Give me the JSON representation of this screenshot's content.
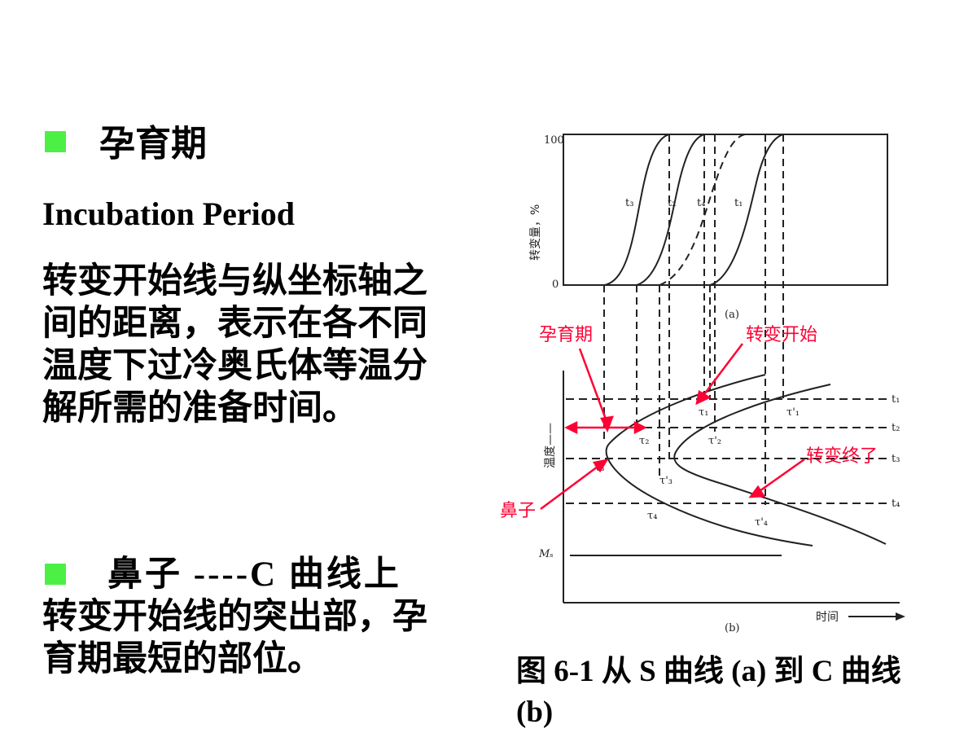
{
  "left": {
    "heading1": "孕育期",
    "english": "Incubation Period",
    "paragraph1": "转变开始线与纵坐标轴之间的距离，表示在各不同温度下过冷奥氏体等温分解所需的准备时间。",
    "paragraph2_lead": "鼻子 ----C  曲线上",
    "paragraph2_rest": "转变开始线的突出部，孕育期最短的部位。"
  },
  "figure": {
    "top_chart": {
      "ylabel": "转变量，%",
      "y_max_tick": "100",
      "y_min_tick": "0",
      "curve_labels": [
        "t₃",
        "t₂",
        "t₄",
        "t₁"
      ],
      "panel_label": "(a)"
    },
    "bottom_chart": {
      "ylabel": "温度——",
      "xlabel": "时间",
      "ms_label": "Mₛ",
      "panel_label": "(b)",
      "temp_labels": [
        "t₁",
        "t₂",
        "t₃",
        "t₄"
      ],
      "tau_start": [
        "τ₁",
        "τ₂",
        "τ₃",
        "τ₄"
      ],
      "tau_end": [
        "τ'₁",
        "τ'₂",
        "τ'₃",
        "τ'₄"
      ]
    },
    "annotations": {
      "incubation": "孕育期",
      "start": "转变开始",
      "end": "转变终了",
      "nose": "鼻子"
    },
    "colors": {
      "annotation": "#ff0033",
      "bullet": "#4cf045"
    }
  },
  "caption": "图 6-1   从 S 曲线 (a) 到 C 曲线 (b)"
}
